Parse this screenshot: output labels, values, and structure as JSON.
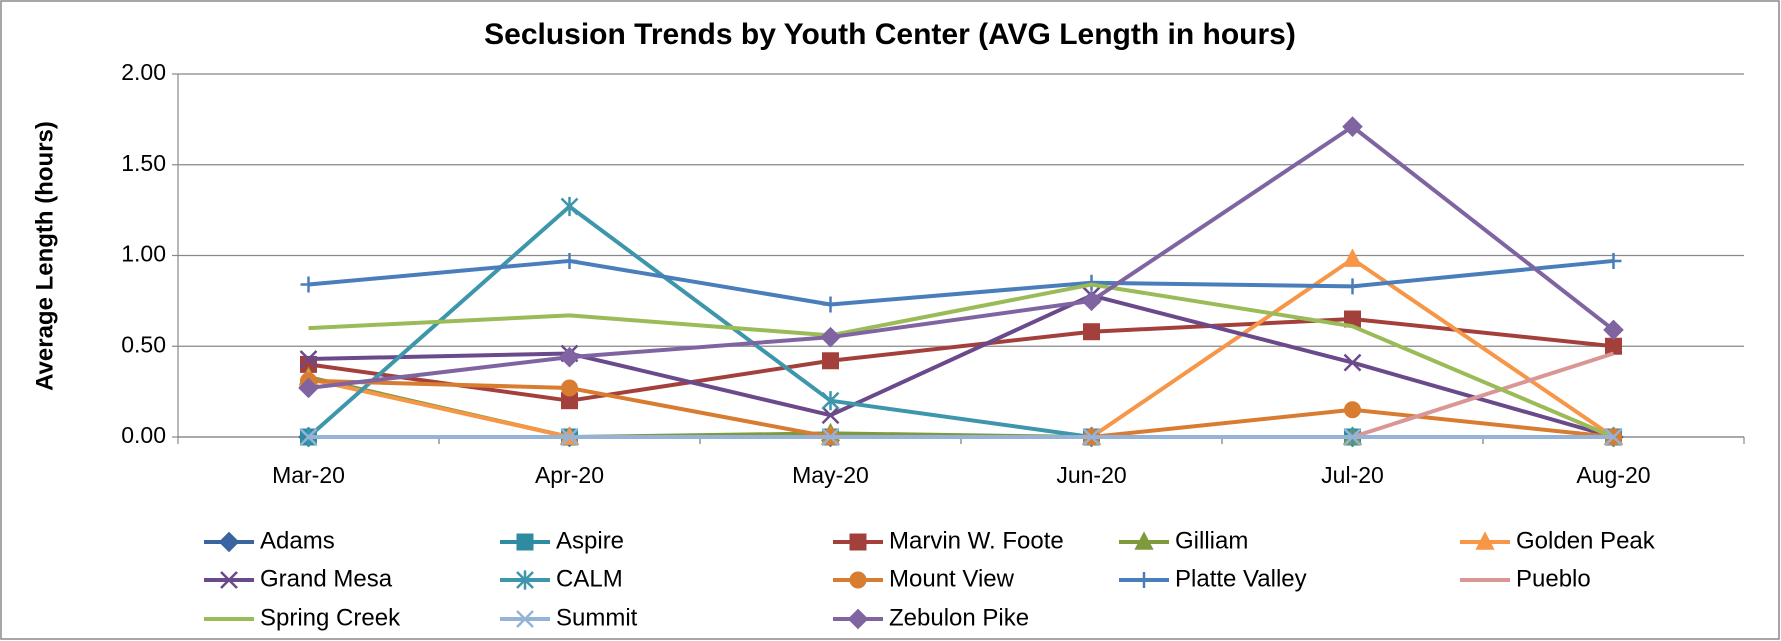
{
  "chart_data": {
    "type": "line",
    "title": "Seclusion Trends by Youth Center (AVG Length in hours)",
    "y_label": "Average Length (hours)",
    "categories": [
      "Mar-20",
      "Apr-20",
      "May-20",
      "Jun-20",
      "Jul-20",
      "Aug-20"
    ],
    "ylim": [
      0,
      2
    ],
    "yticks": [
      {
        "value": 0,
        "label": "0.00"
      },
      {
        "value": 0.5,
        "label": "0.50"
      },
      {
        "value": 1,
        "label": "1.00"
      },
      {
        "value": 1.5,
        "label": "1.50"
      },
      {
        "value": 2,
        "label": "2.00"
      }
    ],
    "grid": true,
    "legend": "bottom",
    "series": [
      {
        "name": "Adams",
        "color": "#3a64a0",
        "marker": "diamond",
        "values": [
          0,
          0,
          0,
          0,
          0,
          0
        ]
      },
      {
        "name": "Aspire",
        "color": "#2e8ba0",
        "marker": "square",
        "values": [
          0,
          0,
          0,
          0,
          0,
          0
        ]
      },
      {
        "name": "Marvin W. Foote",
        "color": "#a3403c",
        "marker": "square",
        "values": [
          0.4,
          0.2,
          0.42,
          0.58,
          0.65,
          0.5
        ]
      },
      {
        "name": "Gilliam",
        "color": "#7e9a3c",
        "marker": "triangle",
        "values": [
          0.33,
          0,
          0.02,
          0,
          0,
          0
        ]
      },
      {
        "name": "Golden Peak",
        "color": "#f79646",
        "marker": "triangle",
        "values": [
          0.32,
          0,
          0,
          0,
          0.98,
          0
        ]
      },
      {
        "name": "Grand Mesa",
        "color": "#6b4a8c",
        "marker": "x",
        "values": [
          0.43,
          0.46,
          0.12,
          0.78,
          0.41,
          0
        ]
      },
      {
        "name": "CALM",
        "color": "#3d96ab",
        "marker": "star",
        "values": [
          0,
          1.27,
          0.2,
          0,
          0,
          0
        ]
      },
      {
        "name": "Mount View",
        "color": "#d77c31",
        "marker": "circle",
        "values": [
          0.31,
          0.27,
          0,
          0,
          0.15,
          0
        ]
      },
      {
        "name": "Platte Valley",
        "color": "#4a7ebb",
        "marker": "plus",
        "values": [
          0.84,
          0.97,
          0.73,
          0.85,
          0.83,
          0.97
        ]
      },
      {
        "name": "Pueblo",
        "color": "#d99694",
        "marker": "none",
        "values": [
          0,
          0,
          0,
          0,
          0,
          0.46
        ]
      },
      {
        "name": "Spring Creek",
        "color": "#9bbb59",
        "marker": "none",
        "values": [
          0.6,
          0.67,
          0.56,
          0.84,
          0.61,
          0
        ]
      },
      {
        "name": "Summit",
        "color": "#95b3d7",
        "marker": "x",
        "values": [
          0,
          0,
          0,
          0,
          0,
          0
        ]
      },
      {
        "name": "Zebulon Pike",
        "color": "#8064a2",
        "marker": "diamond",
        "values": [
          0.27,
          0.44,
          0.55,
          0.75,
          1.71,
          0.59
        ]
      }
    ]
  }
}
